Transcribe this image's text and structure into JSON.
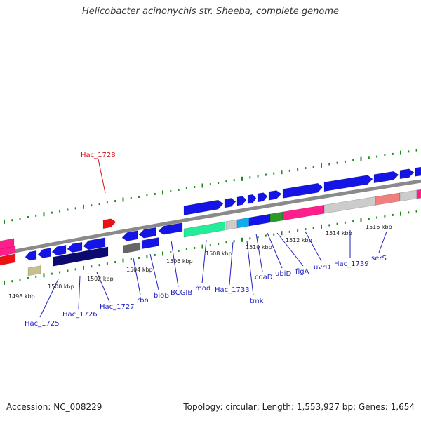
{
  "title": "Helicobacter acinonychis str. Sheeba, complete genome",
  "footer": {
    "accession": "Accession: NC_008229",
    "summary": "Topology: circular; Length: 1,553,927 bp; Genes: 1,654"
  },
  "kbp_labels": [
    "1498 kbp",
    "1500 kbp",
    "1502 kbp",
    "1504 kbp",
    "1506 kbp",
    "1508 kbp",
    "1510 kbp",
    "1512 kbp",
    "1514 kbp",
    "1516 kbp"
  ],
  "gene_labels": [
    {
      "name": "Hac_1728",
      "strand": "forward",
      "color": "#d81010"
    },
    {
      "name": "Hac_1725",
      "strand": "reverse",
      "color": "#1f1fc0"
    },
    {
      "name": "Hac_1726",
      "strand": "reverse",
      "color": "#1f1fc0"
    },
    {
      "name": "Hac_1727",
      "strand": "reverse",
      "color": "#1f1fc0"
    },
    {
      "name": "rbn",
      "strand": "reverse",
      "color": "#1f1fc0"
    },
    {
      "name": "bioB",
      "strand": "reverse",
      "color": "#1f1fc0"
    },
    {
      "name": "BCGIB",
      "strand": "reverse",
      "color": "#1f1fc0"
    },
    {
      "name": "mod",
      "strand": "reverse",
      "color": "#1f1fc0"
    },
    {
      "name": "Hac_1733",
      "strand": "reverse",
      "color": "#1f1fc0"
    },
    {
      "name": "tmk",
      "strand": "reverse",
      "color": "#1f1fc0"
    },
    {
      "name": "coaD",
      "strand": "reverse",
      "color": "#1f1fc0"
    },
    {
      "name": "ubiD",
      "strand": "reverse",
      "color": "#1f1fc0"
    },
    {
      "name": "flgA",
      "strand": "reverse",
      "color": "#1f1fc0"
    },
    {
      "name": "uvrD",
      "strand": "reverse",
      "color": "#1f1fc0"
    },
    {
      "name": "Hac_1739",
      "strand": "reverse",
      "color": "#1f1fc0"
    },
    {
      "name": "serS",
      "strand": "reverse",
      "color": "#1f1fc0"
    }
  ],
  "colors": {
    "backbone": "#8a8a8a",
    "gene_blue": "#1414e6",
    "gene_navy": "#0a0a70",
    "gene_red": "#ee1111",
    "gene_magenta": "#ff1f8a",
    "gene_teal": "#22ee99",
    "gene_cyan": "#11aaee",
    "gene_silver": "#cccccc",
    "gene_salmon": "#f08080",
    "gene_khaki": "#c8c08a",
    "gene_gray": "#666666",
    "gene_green": "#2a9a2a",
    "tick_green": "#1a8a1a",
    "label_blue": "#1f1fc0",
    "label_red": "#d81010"
  }
}
